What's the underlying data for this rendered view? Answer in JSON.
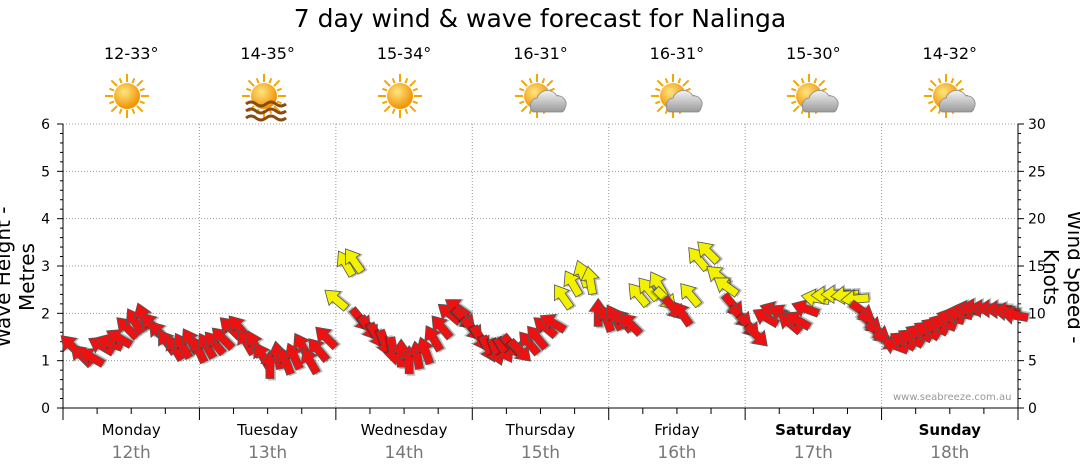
{
  "chart_data": {
    "type": "wind-wave-forecast",
    "title": "7 day wind & wave forecast for Nalinga",
    "ylabel_left": "Wave Height - Metres",
    "ylabel_right": "Wind Speed - Knots",
    "ylim_left": [
      0,
      6
    ],
    "ylim_right": [
      0,
      30
    ],
    "yticks_left": [
      "0",
      "1",
      "2",
      "3",
      "4",
      "5",
      "6"
    ],
    "yticks_right": [
      "0",
      "5",
      "10",
      "15",
      "20",
      "25",
      "30"
    ],
    "credit": "www.seabreeze.com.au",
    "days": [
      {
        "name": "Monday",
        "date": "12th",
        "temp": "12-33°",
        "icon": "sun-icon",
        "bold": false
      },
      {
        "name": "Tuesday",
        "date": "13th",
        "temp": "14-35°",
        "icon": "sun-haze-icon",
        "bold": false
      },
      {
        "name": "Wednesday",
        "date": "14th",
        "temp": "15-34°",
        "icon": "sun-icon",
        "bold": false
      },
      {
        "name": "Thursday",
        "date": "15th",
        "temp": "16-31°",
        "icon": "partly-cloudy-icon",
        "bold": false
      },
      {
        "name": "Friday",
        "date": "16th",
        "temp": "16-31°",
        "icon": "partly-cloudy-icon",
        "bold": false
      },
      {
        "name": "Saturday",
        "date": "17th",
        "temp": "15-30°",
        "icon": "partly-cloudy-icon",
        "bold": true
      },
      {
        "name": "Sunday",
        "date": "18th",
        "temp": "14-32°",
        "icon": "partly-cloudy-icon",
        "bold": true
      }
    ],
    "wind_arrow_colors": {
      "strong": "#f2f200",
      "normal": "#ee1111"
    },
    "wind_speed_threshold_knots": 11.5,
    "wind_series": [
      {
        "t": 0.2,
        "knots": 6.6,
        "dir": 315
      },
      {
        "t": 0.45,
        "knots": 5.6,
        "dir": 315
      },
      {
        "t": 0.7,
        "knots": 5.4,
        "dir": 300
      },
      {
        "t": 0.95,
        "knots": 6.6,
        "dir": 300
      },
      {
        "t": 1.15,
        "knots": 6.9,
        "dir": 290
      },
      {
        "t": 1.4,
        "knots": 7.4,
        "dir": 300
      },
      {
        "t": 1.6,
        "knots": 8.5,
        "dir": 315
      },
      {
        "t": 1.8,
        "knots": 9.2,
        "dir": 330
      },
      {
        "t": 2.0,
        "knots": 9.7,
        "dir": 340
      },
      {
        "t": 2.2,
        "knots": 8.9,
        "dir": 320
      },
      {
        "t": 2.4,
        "knots": 8.0,
        "dir": 320
      },
      {
        "t": 2.6,
        "knots": 7.0,
        "dir": 325
      },
      {
        "t": 2.8,
        "knots": 6.4,
        "dir": 330
      },
      {
        "t": 3.0,
        "knots": 6.6,
        "dir": 330
      },
      {
        "t": 3.2,
        "knots": 7.1,
        "dir": 330
      },
      {
        "t": 3.4,
        "knots": 6.2,
        "dir": 335
      },
      {
        "t": 3.6,
        "knots": 6.6,
        "dir": 330
      },
      {
        "t": 3.8,
        "knots": 6.9,
        "dir": 320
      },
      {
        "t": 4.0,
        "knots": 7.4,
        "dir": 315
      },
      {
        "t": 4.2,
        "knots": 8.5,
        "dir": 315
      },
      {
        "t": 4.4,
        "knots": 8.6,
        "dir": 320
      },
      {
        "t": 4.6,
        "knots": 7.0,
        "dir": 330
      },
      {
        "t": 4.8,
        "knots": 6.8,
        "dir": 335
      },
      {
        "t": 5.0,
        "knots": 5.6,
        "dir": 330
      },
      {
        "t": 5.2,
        "knots": 4.6,
        "dir": 0
      },
      {
        "t": 5.4,
        "knots": 5.6,
        "dir": 350
      },
      {
        "t": 5.6,
        "knots": 5.0,
        "dir": 340
      },
      {
        "t": 5.8,
        "knots": 5.5,
        "dir": 335
      },
      {
        "t": 6.0,
        "knots": 6.6,
        "dir": 330
      },
      {
        "t": 6.2,
        "knots": 5.0,
        "dir": 330
      },
      {
        "t": 6.4,
        "knots": 6.2,
        "dir": 320
      },
      {
        "t": 6.6,
        "knots": 7.5,
        "dir": 315
      },
      {
        "t": 6.85,
        "knots": 11.5,
        "dir": 310
      },
      {
        "t": 7.1,
        "knots": 15.3,
        "dir": 330
      },
      {
        "t": 7.3,
        "knots": 15.6,
        "dir": 325
      },
      {
        "t": 7.5,
        "knots": 9.3,
        "dir": 140
      },
      {
        "t": 7.7,
        "knots": 8.4,
        "dir": 145
      },
      {
        "t": 7.9,
        "knots": 7.6,
        "dir": 150
      },
      {
        "t": 8.1,
        "knots": 6.8,
        "dir": 160
      },
      {
        "t": 8.3,
        "knots": 6.0,
        "dir": 170
      },
      {
        "t": 8.5,
        "knots": 5.8,
        "dir": 0
      },
      {
        "t": 8.7,
        "knots": 5.1,
        "dir": 0
      },
      {
        "t": 8.9,
        "knots": 5.6,
        "dir": 350
      },
      {
        "t": 9.1,
        "knots": 6.1,
        "dir": 340
      },
      {
        "t": 9.3,
        "knots": 7.4,
        "dir": 330
      },
      {
        "t": 9.5,
        "knots": 8.6,
        "dir": 320
      },
      {
        "t": 9.7,
        "knots": 10.0,
        "dir": 310
      },
      {
        "t": 9.9,
        "knots": 10.6,
        "dir": 305
      },
      {
        "t": 10.1,
        "knots": 9.4,
        "dir": 135
      },
      {
        "t": 10.3,
        "knots": 8.3,
        "dir": 140
      },
      {
        "t": 10.5,
        "knots": 7.3,
        "dir": 150
      },
      {
        "t": 10.7,
        "knots": 6.2,
        "dir": 155
      },
      {
        "t": 10.9,
        "knots": 5.9,
        "dir": 160
      },
      {
        "t": 11.1,
        "knots": 6.1,
        "dir": 150
      },
      {
        "t": 11.3,
        "knots": 6.5,
        "dir": 140
      },
      {
        "t": 11.5,
        "knots": 6.0,
        "dir": 135
      },
      {
        "t": 11.7,
        "knots": 6.9,
        "dir": 320
      },
      {
        "t": 11.9,
        "knots": 7.5,
        "dir": 320
      },
      {
        "t": 12.1,
        "knots": 8.6,
        "dir": 310
      },
      {
        "t": 12.3,
        "knots": 9.0,
        "dir": 300
      },
      {
        "t": 12.55,
        "knots": 11.8,
        "dir": 325
      },
      {
        "t": 12.8,
        "knots": 13.2,
        "dir": 330
      },
      {
        "t": 13.05,
        "knots": 14.2,
        "dir": 340
      },
      {
        "t": 13.25,
        "knots": 13.5,
        "dir": 350
      },
      {
        "t": 13.45,
        "knots": 10.1,
        "dir": 0
      },
      {
        "t": 13.65,
        "knots": 9.5,
        "dir": 340
      },
      {
        "t": 13.85,
        "knots": 9.6,
        "dir": 330
      },
      {
        "t": 14.05,
        "knots": 9.3,
        "dir": 320
      },
      {
        "t": 14.25,
        "knots": 8.9,
        "dir": 315
      },
      {
        "t": 14.45,
        "knots": 12.0,
        "dir": 320
      },
      {
        "t": 14.7,
        "knots": 12.6,
        "dir": 320
      },
      {
        "t": 14.95,
        "knots": 13.1,
        "dir": 330
      },
      {
        "t": 15.15,
        "knots": 11.5,
        "dir": 135
      },
      {
        "t": 15.35,
        "knots": 10.5,
        "dir": 140
      },
      {
        "t": 15.55,
        "knots": 10.0,
        "dir": 325
      },
      {
        "t": 15.75,
        "knots": 12.0,
        "dir": 320
      },
      {
        "t": 15.95,
        "knots": 15.8,
        "dir": 320
      },
      {
        "t": 16.2,
        "knots": 16.5,
        "dir": 315
      },
      {
        "t": 16.45,
        "knots": 14.0,
        "dir": 310
      },
      {
        "t": 16.65,
        "knots": 12.9,
        "dir": 305
      },
      {
        "t": 16.85,
        "knots": 10.8,
        "dir": 140
      },
      {
        "t": 17.05,
        "knots": 9.6,
        "dir": 135
      },
      {
        "t": 17.25,
        "knots": 8.6,
        "dir": 140
      },
      {
        "t": 17.45,
        "knots": 7.6,
        "dir": 135
      },
      {
        "t": 17.65,
        "knots": 9.6,
        "dir": 300
      },
      {
        "t": 17.85,
        "knots": 10.3,
        "dir": 290
      },
      {
        "t": 18.05,
        "knots": 10.0,
        "dir": 300
      },
      {
        "t": 18.25,
        "knots": 9.0,
        "dir": 310
      },
      {
        "t": 18.45,
        "knots": 9.3,
        "dir": 300
      },
      {
        "t": 18.65,
        "knots": 10.5,
        "dir": 290
      },
      {
        "t": 18.9,
        "knots": 11.6,
        "dir": 280
      },
      {
        "t": 19.15,
        "knots": 11.9,
        "dir": 270
      },
      {
        "t": 19.4,
        "knots": 12.0,
        "dir": 270
      },
      {
        "t": 19.65,
        "knots": 11.9,
        "dir": 265
      },
      {
        "t": 19.9,
        "knots": 11.5,
        "dir": 265
      },
      {
        "t": 20.1,
        "knots": 10.2,
        "dir": 125
      },
      {
        "t": 20.3,
        "knots": 9.0,
        "dir": 130
      },
      {
        "t": 20.5,
        "knots": 8.0,
        "dir": 125
      },
      {
        "t": 20.7,
        "knots": 7.1,
        "dir": 120
      },
      {
        "t": 20.9,
        "knots": 6.6,
        "dir": 290
      },
      {
        "t": 21.1,
        "knots": 7.1,
        "dir": 300
      },
      {
        "t": 21.3,
        "knots": 7.4,
        "dir": 300
      },
      {
        "t": 21.5,
        "knots": 7.9,
        "dir": 295
      },
      {
        "t": 21.7,
        "knots": 8.2,
        "dir": 300
      },
      {
        "t": 21.9,
        "knots": 8.6,
        "dir": 295
      },
      {
        "t": 22.1,
        "knots": 9.0,
        "dir": 290
      },
      {
        "t": 22.3,
        "knots": 9.6,
        "dir": 285
      },
      {
        "t": 22.5,
        "knots": 10.0,
        "dir": 280
      },
      {
        "t": 22.7,
        "knots": 10.4,
        "dir": 280
      },
      {
        "t": 22.9,
        "knots": 10.6,
        "dir": 275
      },
      {
        "t": 23.1,
        "knots": 10.5,
        "dir": 275
      },
      {
        "t": 23.3,
        "knots": 10.5,
        "dir": 270
      },
      {
        "t": 23.5,
        "knots": 10.4,
        "dir": 270
      },
      {
        "t": 23.7,
        "knots": 10.2,
        "dir": 275
      },
      {
        "t": 23.9,
        "knots": 9.8,
        "dir": 280
      }
    ]
  }
}
